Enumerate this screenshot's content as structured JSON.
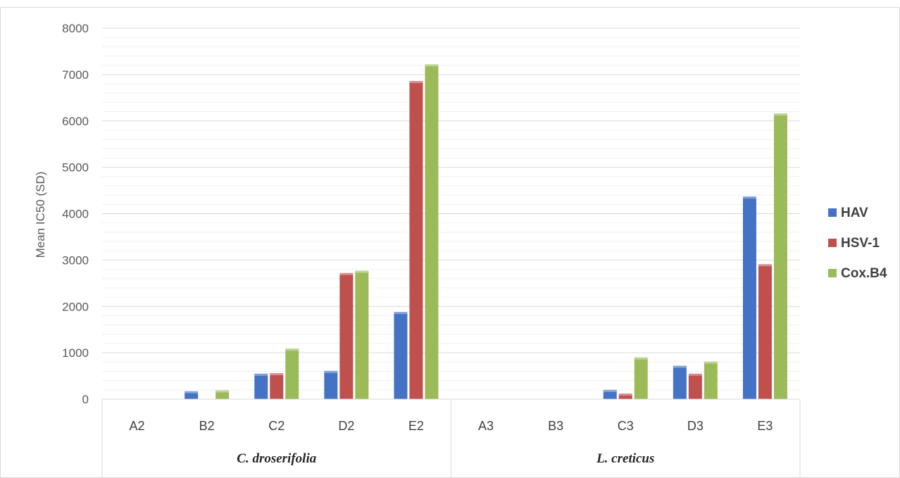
{
  "chart_data": {
    "type": "bar",
    "title": "",
    "ylabel": "Mean IC50 (SD)",
    "xlabel": "",
    "ylim": [
      0,
      8000
    ],
    "yticks": [
      0,
      1000,
      2000,
      3000,
      4000,
      5000,
      6000,
      7000,
      8000
    ],
    "categories": [
      "A2",
      "B2",
      "C2",
      "D2",
      "E2",
      "A3",
      "B3",
      "C3",
      "D3",
      "E3"
    ],
    "groups": [
      {
        "label": "C. droserifolia",
        "categories": [
          "A2",
          "B2",
          "C2",
          "D2",
          "E2"
        ]
      },
      {
        "label": "L. creticus",
        "categories": [
          "A3",
          "B3",
          "C3",
          "D3",
          "E3"
        ]
      }
    ],
    "series": [
      {
        "name": "HAV",
        "color": "#4472C4",
        "values": [
          0,
          170,
          550,
          610,
          1880,
          0,
          0,
          200,
          720,
          4370
        ]
      },
      {
        "name": "HSV-1",
        "color": "#C0504D",
        "values": [
          0,
          0,
          560,
          2720,
          6860,
          0,
          0,
          120,
          550,
          2910
        ]
      },
      {
        "name": "Cox.B4",
        "color": "#9BBB59",
        "values": [
          0,
          190,
          1090,
          2770,
          7220,
          0,
          0,
          900,
          810,
          6160
        ]
      }
    ],
    "legend_position": "right",
    "grid": true
  }
}
